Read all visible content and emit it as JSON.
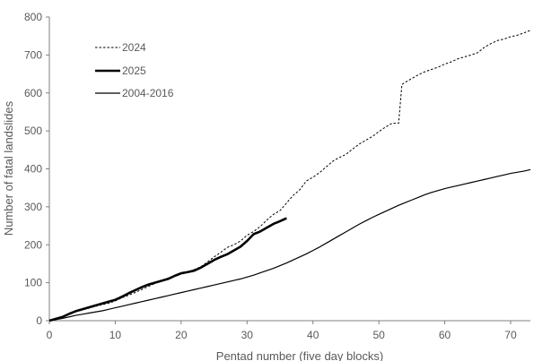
{
  "chart_data": {
    "type": "line",
    "title": "",
    "xlabel": "Pentad number (five day blocks)",
    "ylabel": "Number of fatal landslides",
    "xlim": [
      0,
      73
    ],
    "ylim": [
      0,
      800
    ],
    "xticks": [
      0,
      10,
      20,
      30,
      40,
      50,
      60,
      70
    ],
    "yticks": [
      0,
      100,
      200,
      300,
      400,
      500,
      600,
      700,
      800
    ],
    "grid": false,
    "legend_position": "top-left",
    "series": [
      {
        "name": "2024",
        "style": "dotted",
        "color": "#000000",
        "x": [
          0,
          1,
          2,
          3,
          4,
          5,
          6,
          7,
          8,
          9,
          10,
          11,
          12,
          13,
          14,
          15,
          16,
          17,
          18,
          19,
          20,
          21,
          22,
          23,
          24,
          25,
          26,
          27,
          28,
          29,
          30,
          31,
          32,
          33,
          34,
          35,
          36,
          37,
          38,
          39,
          40,
          41,
          42,
          43,
          44,
          45,
          46,
          47,
          48,
          49,
          50,
          51,
          52,
          53,
          53.5,
          54,
          55,
          56,
          57,
          58,
          59,
          60,
          61,
          62,
          63,
          64,
          65,
          66,
          67,
          68,
          69,
          70,
          71,
          72,
          73
        ],
        "values": [
          0,
          5,
          10,
          18,
          24,
          28,
          33,
          38,
          42,
          46,
          52,
          60,
          67,
          74,
          82,
          90,
          98,
          105,
          112,
          118,
          122,
          128,
          135,
          142,
          155,
          168,
          180,
          193,
          200,
          210,
          225,
          235,
          248,
          265,
          280,
          290,
          310,
          330,
          345,
          368,
          378,
          390,
          405,
          420,
          430,
          438,
          452,
          465,
          475,
          485,
          498,
          510,
          520,
          520,
          622,
          628,
          638,
          648,
          656,
          662,
          668,
          676,
          682,
          690,
          695,
          700,
          706,
          720,
          730,
          738,
          742,
          748,
          752,
          758,
          765
        ]
      },
      {
        "name": "2025",
        "style": "thick",
        "color": "#000000",
        "x": [
          0,
          1,
          2,
          3,
          4,
          5,
          6,
          7,
          8,
          9,
          10,
          11,
          12,
          13,
          14,
          15,
          16,
          17,
          18,
          19,
          20,
          21,
          22,
          23,
          24,
          25,
          26,
          27,
          28,
          29,
          30,
          31,
          32,
          33,
          34,
          35,
          36
        ],
        "values": [
          0,
          5,
          10,
          18,
          25,
          30,
          35,
          40,
          45,
          50,
          55,
          63,
          72,
          80,
          88,
          95,
          100,
          105,
          110,
          118,
          125,
          128,
          132,
          140,
          150,
          160,
          168,
          175,
          185,
          195,
          210,
          228,
          235,
          245,
          255,
          262,
          270
        ]
      },
      {
        "name": "2004-2016",
        "style": "solid",
        "color": "#000000",
        "x": [
          0,
          1,
          2,
          3,
          4,
          5,
          6,
          7,
          8,
          9,
          10,
          11,
          12,
          13,
          14,
          15,
          16,
          17,
          18,
          19,
          20,
          21,
          22,
          23,
          24,
          25,
          26,
          27,
          28,
          29,
          30,
          31,
          32,
          33,
          34,
          35,
          36,
          37,
          38,
          39,
          40,
          41,
          42,
          43,
          44,
          45,
          46,
          47,
          48,
          49,
          50,
          51,
          52,
          53,
          54,
          55,
          56,
          57,
          58,
          59,
          60,
          61,
          62,
          63,
          64,
          65,
          66,
          67,
          68,
          69,
          70,
          71,
          72,
          73
        ],
        "values": [
          0,
          3,
          6,
          10,
          14,
          17,
          20,
          23,
          26,
          30,
          34,
          38,
          42,
          46,
          50,
          54,
          58,
          62,
          66,
          70,
          74,
          78,
          82,
          86,
          90,
          94,
          98,
          102,
          106,
          110,
          115,
          120,
          126,
          132,
          138,
          145,
          152,
          160,
          168,
          176,
          185,
          194,
          204,
          214,
          224,
          234,
          244,
          254,
          263,
          272,
          280,
          288,
          296,
          304,
          311,
          318,
          325,
          332,
          338,
          343,
          348,
          352,
          356,
          360,
          364,
          368,
          372,
          376,
          380,
          384,
          388,
          391,
          394,
          398
        ]
      }
    ]
  }
}
